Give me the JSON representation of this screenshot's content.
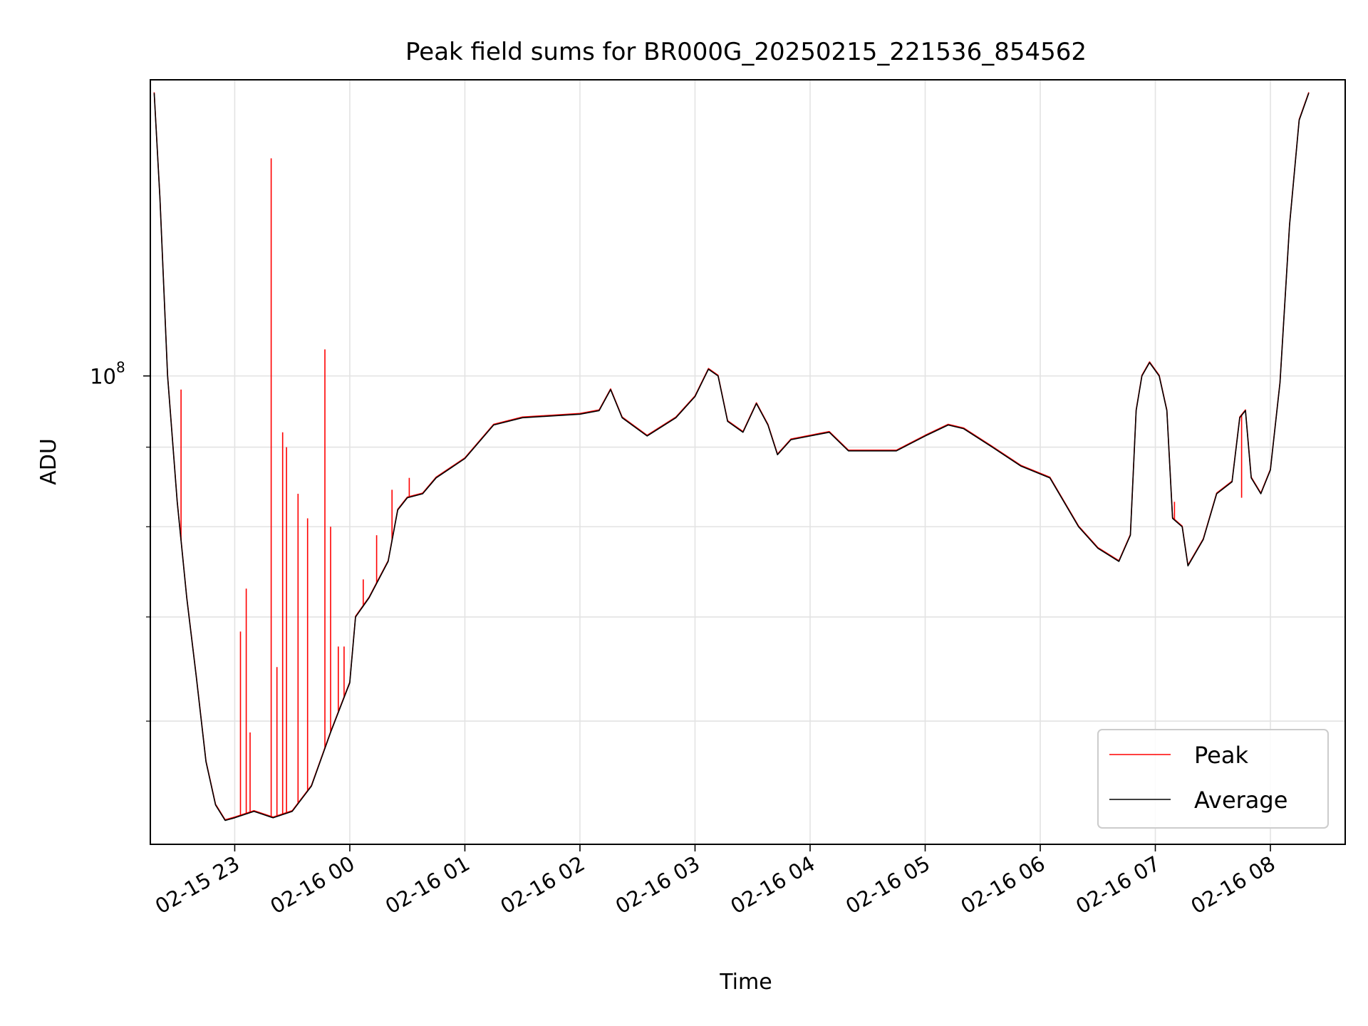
{
  "chart_data": {
    "type": "line",
    "title": "Peak field sums for BR000G_20250215_221536_854562",
    "xlabel": "Time",
    "ylabel": "ADU",
    "y_scale": "log",
    "ylim": [
      50000000.0,
      155000000.0
    ],
    "xlim": [
      "2025-02-15 22:16",
      "2025-02-16 08:39"
    ],
    "x_ticks": [
      {
        "label": "02-15 23",
        "value": "2025-02-15 23:00"
      },
      {
        "label": "02-16 00",
        "value": "2025-02-16 00:00"
      },
      {
        "label": "02-16 01",
        "value": "2025-02-16 01:00"
      },
      {
        "label": "02-16 02",
        "value": "2025-02-16 02:00"
      },
      {
        "label": "02-16 03",
        "value": "2025-02-16 03:00"
      },
      {
        "label": "02-16 04",
        "value": "2025-02-16 04:00"
      },
      {
        "label": "02-16 05",
        "value": "2025-02-16 05:00"
      },
      {
        "label": "02-16 06",
        "value": "2025-02-16 06:00"
      },
      {
        "label": "02-16 07",
        "value": "2025-02-16 07:00"
      },
      {
        "label": "02-16 08",
        "value": "2025-02-16 08:00"
      }
    ],
    "y_major_ticks": [
      {
        "label": "10",
        "exponent": "8",
        "value": 100000000.0
      }
    ],
    "y_minor_ticks": [
      60000000.0,
      70000000.0,
      80000000.0,
      90000000.0,
      200000000.0,
      300000000.0,
      400000000.0,
      500000000.0
    ],
    "grid": true,
    "legend": "bottom-right",
    "series": [
      {
        "name": "Peak",
        "color": "#ff0000",
        "spikes": [
          [
            "2025-02-15 22:32",
            98000000.0
          ],
          [
            "2025-02-15 22:30",
            83000000.0
          ],
          [
            "2025-02-15 23:03",
            68500000.0
          ],
          [
            "2025-02-15 23:06",
            73000000.0
          ],
          [
            "2025-02-15 23:08",
            59000000.0
          ],
          [
            "2025-02-15 23:19",
            138000000.0
          ],
          [
            "2025-02-15 23:22",
            65000000.0
          ],
          [
            "2025-02-15 23:25",
            92000000.0
          ],
          [
            "2025-02-15 23:27",
            90000000.0
          ],
          [
            "2025-02-15 23:33",
            84000000.0
          ],
          [
            "2025-02-15 23:38",
            81000000.0
          ],
          [
            "2025-02-15 23:47",
            104000000.0
          ],
          [
            "2025-02-15 23:50",
            80000000.0
          ],
          [
            "2025-02-15 23:54",
            67000000.0
          ],
          [
            "2025-02-15 23:57",
            67000000.0
          ],
          [
            "2025-02-16 00:07",
            74000000.0
          ],
          [
            "2025-02-16 00:14",
            79000000.0
          ],
          [
            "2025-02-16 00:22",
            84500000.0
          ],
          [
            "2025-02-16 00:31",
            86000000.0
          ],
          [
            "2025-02-16 02:44",
            93000000.0
          ],
          [
            "2025-02-16 07:10",
            83000000.0
          ],
          [
            "2025-02-16 07:45",
            83500000.0
          ]
        ]
      },
      {
        "name": "Average",
        "color": "#000000",
        "points": [
          [
            "2025-02-15 22:18",
            152000000.0
          ],
          [
            "2025-02-15 22:21",
            130000000.0
          ],
          [
            "2025-02-15 22:25",
            100000000.0
          ],
          [
            "2025-02-15 22:30",
            83000000.0
          ],
          [
            "2025-02-15 22:35",
            72000000.0
          ],
          [
            "2025-02-15 22:40",
            64000000.0
          ],
          [
            "2025-02-15 22:45",
            56500000.0
          ],
          [
            "2025-02-15 22:50",
            53000000.0
          ],
          [
            "2025-02-15 22:55",
            51800000.0
          ],
          [
            "2025-02-15 23:00",
            52000000.0
          ],
          [
            "2025-02-15 23:10",
            52500000.0
          ],
          [
            "2025-02-15 23:20",
            52000000.0
          ],
          [
            "2025-02-15 23:30",
            52500000.0
          ],
          [
            "2025-02-15 23:40",
            54500000.0
          ],
          [
            "2025-02-15 23:50",
            59000000.0
          ],
          [
            "2025-02-16 00:00",
            63500000.0
          ],
          [
            "2025-02-16 00:03",
            70000000.0
          ],
          [
            "2025-02-16 00:10",
            72000000.0
          ],
          [
            "2025-02-16 00:20",
            76000000.0
          ],
          [
            "2025-02-16 00:25",
            82000000.0
          ],
          [
            "2025-02-16 00:30",
            83500000.0
          ],
          [
            "2025-02-16 00:38",
            84000000.0
          ],
          [
            "2025-02-16 00:45",
            86000000.0
          ],
          [
            "2025-02-16 01:00",
            88500000.0
          ],
          [
            "2025-02-16 01:15",
            93000000.0
          ],
          [
            "2025-02-16 01:30",
            94000000.0
          ],
          [
            "2025-02-16 02:00",
            94500000.0
          ],
          [
            "2025-02-16 02:10",
            95000000.0
          ],
          [
            "2025-02-16 02:16",
            98000000.0
          ],
          [
            "2025-02-16 02:22",
            94000000.0
          ],
          [
            "2025-02-16 02:35",
            91500000.0
          ],
          [
            "2025-02-16 02:50",
            94000000.0
          ],
          [
            "2025-02-16 03:00",
            97000000.0
          ],
          [
            "2025-02-16 03:07",
            101000000.0
          ],
          [
            "2025-02-16 03:12",
            100000000.0
          ],
          [
            "2025-02-16 03:17",
            93500000.0
          ],
          [
            "2025-02-16 03:25",
            92000000.0
          ],
          [
            "2025-02-16 03:32",
            96000000.0
          ],
          [
            "2025-02-16 03:38",
            93000000.0
          ],
          [
            "2025-02-16 03:43",
            89000000.0
          ],
          [
            "2025-02-16 03:50",
            91000000.0
          ],
          [
            "2025-02-16 04:00",
            91500000.0
          ],
          [
            "2025-02-16 04:10",
            92000000.0
          ],
          [
            "2025-02-16 04:20",
            89500000.0
          ],
          [
            "2025-02-16 04:45",
            89500000.0
          ],
          [
            "2025-02-16 05:00",
            91500000.0
          ],
          [
            "2025-02-16 05:12",
            93000000.0
          ],
          [
            "2025-02-16 05:20",
            92500000.0
          ],
          [
            "2025-02-16 05:35",
            90000000.0
          ],
          [
            "2025-02-16 05:50",
            87500000.0
          ],
          [
            "2025-02-16 06:05",
            86000000.0
          ],
          [
            "2025-02-16 06:20",
            80000000.0
          ],
          [
            "2025-02-16 06:30",
            77500000.0
          ],
          [
            "2025-02-16 06:41",
            76000000.0
          ],
          [
            "2025-02-16 06:47",
            79000000.0
          ],
          [
            "2025-02-16 06:50",
            95000000.0
          ],
          [
            "2025-02-16 06:53",
            100000000.0
          ],
          [
            "2025-02-16 06:57",
            102000000.0
          ],
          [
            "2025-02-16 07:02",
            100000000.0
          ],
          [
            "2025-02-16 07:06",
            95000000.0
          ],
          [
            "2025-02-16 07:09",
            81000000.0
          ],
          [
            "2025-02-16 07:14",
            80000000.0
          ],
          [
            "2025-02-16 07:17",
            75500000.0
          ],
          [
            "2025-02-16 07:25",
            78500000.0
          ],
          [
            "2025-02-16 07:32",
            84000000.0
          ],
          [
            "2025-02-16 07:40",
            85500000.0
          ],
          [
            "2025-02-16 07:44",
            94000000.0
          ],
          [
            "2025-02-16 07:47",
            95000000.0
          ],
          [
            "2025-02-16 07:50",
            86000000.0
          ],
          [
            "2025-02-16 07:55",
            84000000.0
          ],
          [
            "2025-02-16 08:00",
            87000000.0
          ],
          [
            "2025-02-16 08:05",
            99000000.0
          ],
          [
            "2025-02-16 08:10",
            125000000.0
          ],
          [
            "2025-02-16 08:15",
            146000000.0
          ],
          [
            "2025-02-16 08:20",
            152000000.0
          ]
        ]
      }
    ]
  }
}
